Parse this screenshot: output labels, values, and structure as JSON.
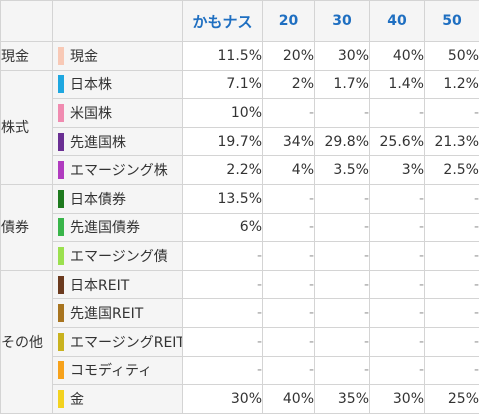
{
  "header": {
    "corner": "",
    "columns": [
      "かもナス",
      "20",
      "30",
      "40",
      "50"
    ]
  },
  "groups": {
    "cash": "現金",
    "stocks": "株式",
    "bonds": "債券",
    "others": "その他"
  },
  "rows": [
    {
      "label": "現金",
      "color": "#f8c9b6",
      "values": [
        "11.5%",
        "20%",
        "30%",
        "40%",
        "50%"
      ]
    },
    {
      "label": "日本株",
      "color": "#1ea7e0",
      "values": [
        "7.1%",
        "2%",
        "1.7%",
        "1.4%",
        "1.2%"
      ]
    },
    {
      "label": "米国株",
      "color": "#f08bb0",
      "values": [
        "10%",
        "-",
        "-",
        "-",
        "-"
      ]
    },
    {
      "label": "先進国株",
      "color": "#6a2f93",
      "values": [
        "19.7%",
        "34%",
        "29.8%",
        "25.6%",
        "21.3%"
      ]
    },
    {
      "label": "エマージング株",
      "color": "#b03bbf",
      "values": [
        "2.2%",
        "4%",
        "3.5%",
        "3%",
        "2.5%"
      ]
    },
    {
      "label": "日本債券",
      "color": "#1e7a1e",
      "values": [
        "13.5%",
        "-",
        "-",
        "-",
        "-"
      ]
    },
    {
      "label": "先進国債券",
      "color": "#39b54a",
      "values": [
        "6%",
        "-",
        "-",
        "-",
        "-"
      ]
    },
    {
      "label": "エマージング債",
      "color": "#9be04f",
      "values": [
        "-",
        "-",
        "-",
        "-",
        "-"
      ]
    },
    {
      "label": "日本REIT",
      "color": "#6b3a1e",
      "values": [
        "-",
        "-",
        "-",
        "-",
        "-"
      ]
    },
    {
      "label": "先進国REIT",
      "color": "#a8741f",
      "values": [
        "-",
        "-",
        "-",
        "-",
        "-"
      ]
    },
    {
      "label": "エマージングREIT",
      "color": "#c9b21e",
      "values": [
        "-",
        "-",
        "-",
        "-",
        "-"
      ]
    },
    {
      "label": "コモディティ",
      "color": "#f7a21b",
      "values": [
        "-",
        "-",
        "-",
        "-",
        "-"
      ]
    },
    {
      "label": "金",
      "color": "#f3d21f",
      "values": [
        "30%",
        "40%",
        "35%",
        "30%",
        "25%"
      ]
    }
  ]
}
